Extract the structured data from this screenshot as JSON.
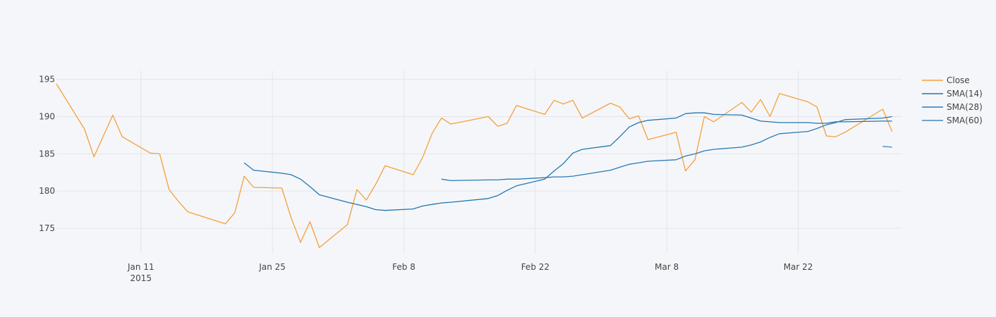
{
  "chart_data": {
    "type": "line",
    "title": "",
    "xlabel": "",
    "ylabel": "",
    "x_start": "2015-01-02",
    "x_end": "2015-04-02",
    "ylim": [
      171.6,
      196.2
    ],
    "y_ticks": [
      175,
      180,
      185,
      190,
      195
    ],
    "x_ticks": [
      {
        "date": "2015-01-11",
        "label": "Jan 11",
        "sublabel": "2015"
      },
      {
        "date": "2015-01-25",
        "label": "Jan 25",
        "sublabel": ""
      },
      {
        "date": "2015-02-08",
        "label": "Feb 8",
        "sublabel": ""
      },
      {
        "date": "2015-02-22",
        "label": "Feb 22",
        "sublabel": ""
      },
      {
        "date": "2015-03-08",
        "label": "Mar 8",
        "sublabel": ""
      },
      {
        "date": "2015-03-22",
        "label": "Mar 22",
        "sublabel": ""
      }
    ],
    "grid": true,
    "legend_position": "top-right",
    "series": [
      {
        "name": "Close",
        "color": "#f4a03b",
        "points": [
          [
            "2015-01-02",
            194.4
          ],
          [
            "2015-01-05",
            188.3
          ],
          [
            "2015-01-06",
            184.6
          ],
          [
            "2015-01-08",
            190.2
          ],
          [
            "2015-01-09",
            187.3
          ],
          [
            "2015-01-12",
            185.1
          ],
          [
            "2015-01-13",
            185.0
          ],
          [
            "2015-01-14",
            180.2
          ],
          [
            "2015-01-15",
            178.6
          ],
          [
            "2015-01-16",
            177.2
          ],
          [
            "2015-01-20",
            175.6
          ],
          [
            "2015-01-21",
            177.1
          ],
          [
            "2015-01-22",
            182.0
          ],
          [
            "2015-01-23",
            180.5
          ],
          [
            "2015-01-26",
            180.4
          ],
          [
            "2015-01-27",
            176.4
          ],
          [
            "2015-01-28",
            173.1
          ],
          [
            "2015-01-29",
            175.9
          ],
          [
            "2015-01-30",
            172.4
          ],
          [
            "2015-02-02",
            175.5
          ],
          [
            "2015-02-03",
            180.2
          ],
          [
            "2015-02-04",
            178.8
          ],
          [
            "2015-02-05",
            180.9
          ],
          [
            "2015-02-06",
            183.4
          ],
          [
            "2015-02-09",
            182.2
          ],
          [
            "2015-02-10",
            184.5
          ],
          [
            "2015-02-11",
            187.7
          ],
          [
            "2015-02-12",
            189.8
          ],
          [
            "2015-02-13",
            189.0
          ],
          [
            "2015-02-17",
            190.0
          ],
          [
            "2015-02-18",
            188.7
          ],
          [
            "2015-02-19",
            189.1
          ],
          [
            "2015-02-20",
            191.5
          ],
          [
            "2015-02-23",
            190.3
          ],
          [
            "2015-02-24",
            192.2
          ],
          [
            "2015-02-25",
            191.7
          ],
          [
            "2015-02-26",
            192.2
          ],
          [
            "2015-02-27",
            189.8
          ],
          [
            "2015-03-02",
            191.8
          ],
          [
            "2015-03-03",
            191.3
          ],
          [
            "2015-03-04",
            189.7
          ],
          [
            "2015-03-05",
            190.1
          ],
          [
            "2015-03-06",
            186.9
          ],
          [
            "2015-03-09",
            187.9
          ],
          [
            "2015-03-10",
            182.7
          ],
          [
            "2015-03-11",
            184.2
          ],
          [
            "2015-03-12",
            190.0
          ],
          [
            "2015-03-13",
            189.3
          ],
          [
            "2015-03-16",
            191.9
          ],
          [
            "2015-03-17",
            190.6
          ],
          [
            "2015-03-18",
            192.3
          ],
          [
            "2015-03-19",
            190.0
          ],
          [
            "2015-03-20",
            193.1
          ],
          [
            "2015-03-23",
            192.0
          ],
          [
            "2015-03-24",
            191.3
          ],
          [
            "2015-03-25",
            187.4
          ],
          [
            "2015-03-26",
            187.3
          ],
          [
            "2015-03-27",
            187.9
          ],
          [
            "2015-03-31",
            191.0
          ],
          [
            "2015-04-01",
            188.0
          ]
        ]
      },
      {
        "name": "SMA(14)",
        "color": "#1f77b4",
        "points": [
          [
            "2015-01-22",
            183.8
          ],
          [
            "2015-01-23",
            182.8
          ],
          [
            "2015-01-26",
            182.4
          ],
          [
            "2015-01-27",
            182.2
          ],
          [
            "2015-01-28",
            181.6
          ],
          [
            "2015-01-29",
            180.6
          ],
          [
            "2015-01-30",
            179.5
          ],
          [
            "2015-02-02",
            178.5
          ],
          [
            "2015-02-03",
            178.2
          ],
          [
            "2015-02-04",
            177.9
          ],
          [
            "2015-02-05",
            177.5
          ],
          [
            "2015-02-06",
            177.4
          ],
          [
            "2015-02-09",
            177.6
          ],
          [
            "2015-02-10",
            178.0
          ],
          [
            "2015-02-11",
            178.2
          ],
          [
            "2015-02-12",
            178.4
          ],
          [
            "2015-02-13",
            178.5
          ],
          [
            "2015-02-17",
            179.0
          ],
          [
            "2015-02-18",
            179.4
          ],
          [
            "2015-02-19",
            180.1
          ],
          [
            "2015-02-20",
            180.7
          ],
          [
            "2015-02-23",
            181.6
          ],
          [
            "2015-02-24",
            182.7
          ],
          [
            "2015-02-25",
            183.7
          ],
          [
            "2015-02-26",
            185.1
          ],
          [
            "2015-02-27",
            185.6
          ],
          [
            "2015-03-02",
            186.1
          ],
          [
            "2015-03-03",
            187.3
          ],
          [
            "2015-03-04",
            188.6
          ],
          [
            "2015-03-05",
            189.2
          ],
          [
            "2015-03-06",
            189.5
          ],
          [
            "2015-03-09",
            189.8
          ],
          [
            "2015-03-10",
            190.4
          ],
          [
            "2015-03-11",
            190.5
          ],
          [
            "2015-03-12",
            190.5
          ],
          [
            "2015-03-13",
            190.3
          ],
          [
            "2015-03-16",
            190.2
          ],
          [
            "2015-03-17",
            189.8
          ],
          [
            "2015-03-18",
            189.4
          ],
          [
            "2015-03-19",
            189.3
          ],
          [
            "2015-03-20",
            189.2
          ],
          [
            "2015-03-23",
            189.2
          ],
          [
            "2015-03-24",
            189.1
          ],
          [
            "2015-03-25",
            189.1
          ],
          [
            "2015-03-26",
            189.3
          ],
          [
            "2015-03-27",
            189.3
          ],
          [
            "2015-03-31",
            189.4
          ],
          [
            "2015-04-01",
            189.4
          ]
        ]
      },
      {
        "name": "SMA(28)",
        "color": "#2a7ab8",
        "points": [
          [
            "2015-02-12",
            181.6
          ],
          [
            "2015-02-13",
            181.4
          ],
          [
            "2015-02-17",
            181.5
          ],
          [
            "2015-02-18",
            181.5
          ],
          [
            "2015-02-19",
            181.6
          ],
          [
            "2015-02-20",
            181.6
          ],
          [
            "2015-02-23",
            181.8
          ],
          [
            "2015-02-24",
            181.9
          ],
          [
            "2015-02-25",
            181.9
          ],
          [
            "2015-02-26",
            182.0
          ],
          [
            "2015-02-27",
            182.2
          ],
          [
            "2015-03-02",
            182.8
          ],
          [
            "2015-03-03",
            183.2
          ],
          [
            "2015-03-04",
            183.6
          ],
          [
            "2015-03-05",
            183.8
          ],
          [
            "2015-03-06",
            184.0
          ],
          [
            "2015-03-09",
            184.2
          ],
          [
            "2015-03-10",
            184.7
          ],
          [
            "2015-03-11",
            185.0
          ],
          [
            "2015-03-12",
            185.4
          ],
          [
            "2015-03-13",
            185.6
          ],
          [
            "2015-03-16",
            185.9
          ],
          [
            "2015-03-17",
            186.2
          ],
          [
            "2015-03-18",
            186.6
          ],
          [
            "2015-03-19",
            187.2
          ],
          [
            "2015-03-20",
            187.7
          ],
          [
            "2015-03-23",
            188.0
          ],
          [
            "2015-03-24",
            188.4
          ],
          [
            "2015-03-25",
            188.9
          ],
          [
            "2015-03-26",
            189.2
          ],
          [
            "2015-03-27",
            189.6
          ],
          [
            "2015-03-31",
            189.8
          ],
          [
            "2015-04-01",
            190.0
          ]
        ]
      },
      {
        "name": "SMA(60)",
        "color": "#3e8ac4",
        "points": [
          [
            "2015-03-31",
            186.0
          ],
          [
            "2015-04-01",
            185.9
          ]
        ]
      }
    ]
  }
}
